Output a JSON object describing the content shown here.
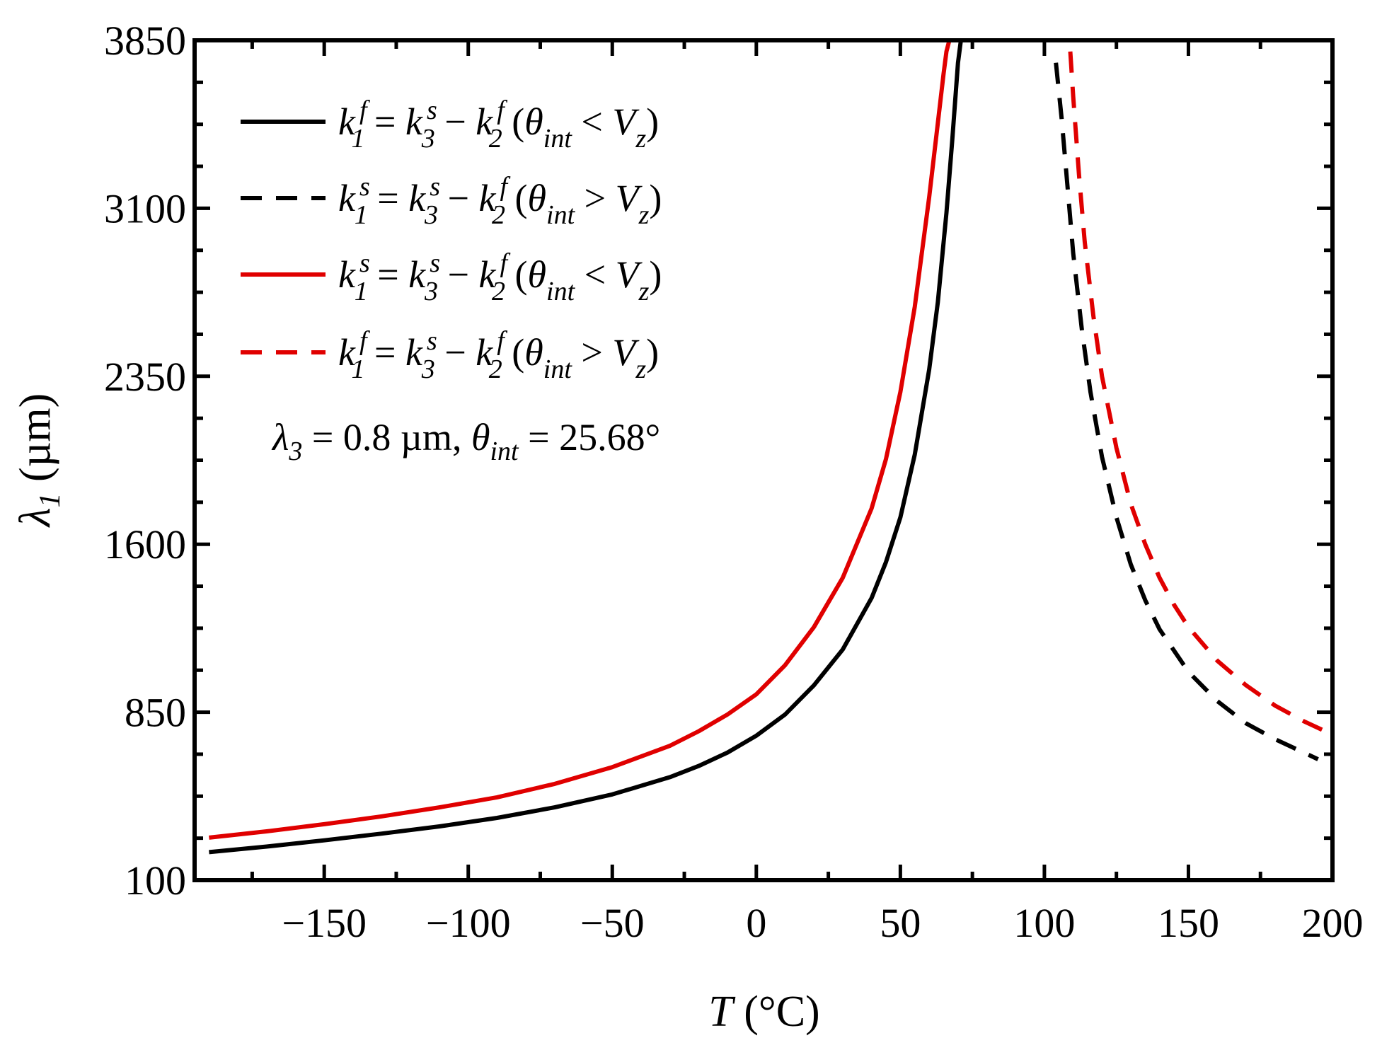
{
  "chart_data": {
    "type": "line",
    "xlabel": {
      "var": "T",
      "unit": " (°C)"
    },
    "ylabel": {
      "var": "λ",
      "sub": "1",
      "unit": " (µm)"
    },
    "xlim": [
      -195,
      200
    ],
    "ylim": [
      100,
      3850
    ],
    "xticks": [
      -150,
      -100,
      -50,
      0,
      50,
      100,
      150,
      200
    ],
    "xtick_labels": [
      "−150",
      "−100",
      "−50",
      "0",
      "50",
      "100",
      "150",
      "200"
    ],
    "yticks": [
      100,
      850,
      1600,
      2350,
      3100,
      3850
    ],
    "ytick_labels": [
      "100",
      "850",
      "1600",
      "2350",
      "3100",
      "3850"
    ],
    "annotation": {
      "lambda": "λ",
      "lambda_sub": "3",
      "lambda_value": " = 0.8 µm, ",
      "theta": "θ",
      "theta_sub": "int",
      "theta_value": " = 25.68°"
    },
    "legend_position": "top-left",
    "series": [
      {
        "name": "k1f = k3s − k2f (θint < Vz)",
        "k1": "f",
        "k3": "s",
        "k2": "f",
        "relation": "<",
        "color": "#000000",
        "dash": "solid",
        "x": [
          -190,
          -170,
          -150,
          -130,
          -110,
          -90,
          -70,
          -50,
          -30,
          -20,
          -10,
          0,
          10,
          20,
          30,
          40,
          45,
          50,
          55,
          60,
          63,
          66,
          68,
          70,
          71
        ],
        "y": [
          225,
          250,
          278,
          308,
          340,
          378,
          425,
          483,
          560,
          610,
          670,
          745,
          840,
          970,
          1130,
          1360,
          1520,
          1720,
          2000,
          2380,
          2680,
          3080,
          3400,
          3750,
          3850
        ]
      },
      {
        "name": "k1s = k3s − k2f (θint > Vz)",
        "k1": "s",
        "k3": "s",
        "k2": "f",
        "relation": ">",
        "color": "#000000",
        "dash": "dashed",
        "x": [
          104,
          106,
          108,
          110,
          113,
          116,
          120,
          125,
          130,
          135,
          140,
          150,
          160,
          170,
          180,
          190,
          195
        ],
        "y": [
          3750,
          3500,
          3200,
          2900,
          2560,
          2280,
          1990,
          1720,
          1510,
          1350,
          1220,
          1030,
          900,
          800,
          730,
          670,
          640
        ]
      },
      {
        "name": "k1s = k3s − k2f (θint < Vz)",
        "k1": "s",
        "k3": "s",
        "k2": "f",
        "relation": "<",
        "color": "#e00000",
        "dash": "solid",
        "x": [
          -190,
          -170,
          -150,
          -130,
          -110,
          -90,
          -70,
          -50,
          -30,
          -20,
          -10,
          0,
          10,
          20,
          30,
          40,
          45,
          50,
          55,
          60,
          63,
          65,
          66,
          67
        ],
        "y": [
          290,
          318,
          350,
          385,
          425,
          470,
          530,
          605,
          700,
          765,
          840,
          930,
          1060,
          1230,
          1450,
          1760,
          1980,
          2280,
          2660,
          3150,
          3480,
          3700,
          3800,
          3850
        ]
      },
      {
        "name": "k1f = k3s − k2f (θint > Vz)",
        "k1": "f",
        "k3": "s",
        "k2": "f",
        "relation": ">",
        "color": "#e00000",
        "dash": "dashed",
        "x": [
          109,
          110,
          112,
          114,
          117,
          120,
          125,
          130,
          135,
          140,
          145,
          150,
          160,
          170,
          180,
          190,
          200
        ],
        "y": [
          3800,
          3600,
          3250,
          2950,
          2620,
          2350,
          2030,
          1780,
          1600,
          1450,
          1330,
          1230,
          1080,
          970,
          880,
          810,
          750
        ]
      }
    ]
  }
}
